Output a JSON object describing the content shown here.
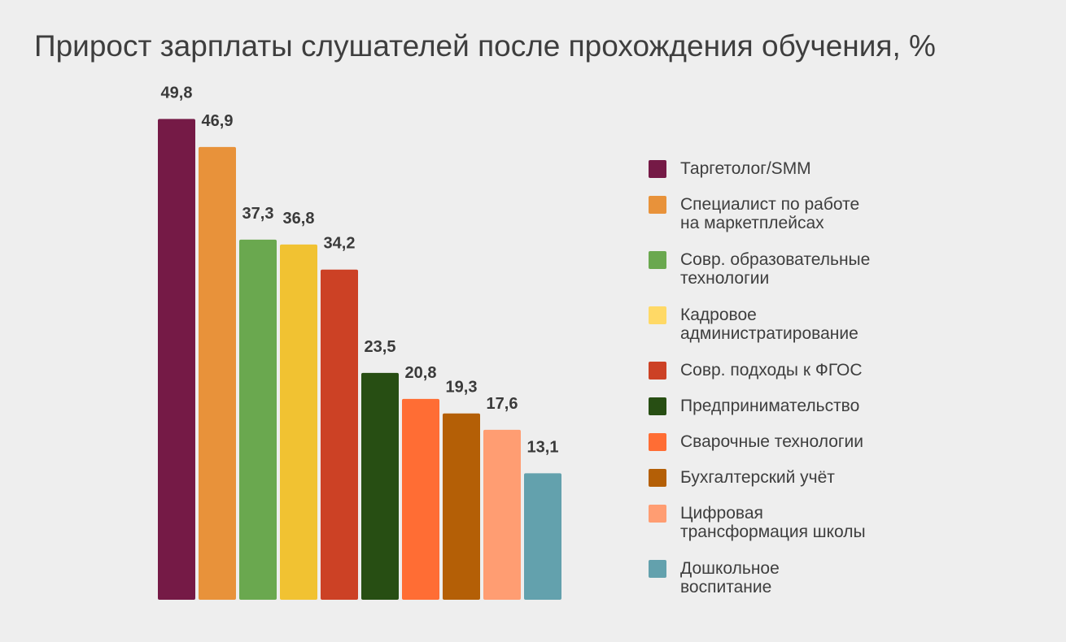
{
  "chart_data": {
    "type": "bar",
    "title": "Прирост зарплаты слушателей после прохождения обучения, %",
    "categories": [
      "Таргетолог/SMM",
      "Специалист по работе\nна маркетплейсах",
      "Совр. образовательные\nтехнологии",
      "Кадровое\nадминистратирование",
      "Совр. подходы к ФГОС",
      "Предпринимательство",
      "Сварочные технологии",
      "Бухгалтерский учёт",
      "Цифровая\nтрансформация школы",
      "Дошкольное\nвоспитание"
    ],
    "values": [
      49.8,
      46.9,
      37.3,
      36.8,
      34.2,
      23.5,
      20.8,
      19.3,
      17.6,
      13.1
    ],
    "value_labels": [
      "49,8",
      "46,9",
      "37,3",
      "36,8",
      "34,2",
      "23,5",
      "20,8",
      "19,3",
      "17,6",
      "13,1"
    ],
    "colors": [
      "#751a46",
      "#e8923a",
      "#6aa84f",
      "#f1c232",
      "#cc4125",
      "#274e13",
      "#ff6d34",
      "#b45f06",
      "#ff9d72",
      "#63a1ad"
    ],
    "legend_colors": [
      "#751a46",
      "#e8923a",
      "#6aa84f",
      "#ffd966",
      "#cc4125",
      "#274e13",
      "#ff6d34",
      "#b45f06",
      "#ff9d72",
      "#63a1ad"
    ],
    "ylim": [
      0,
      50
    ],
    "grid": false,
    "legend_position": "right"
  }
}
